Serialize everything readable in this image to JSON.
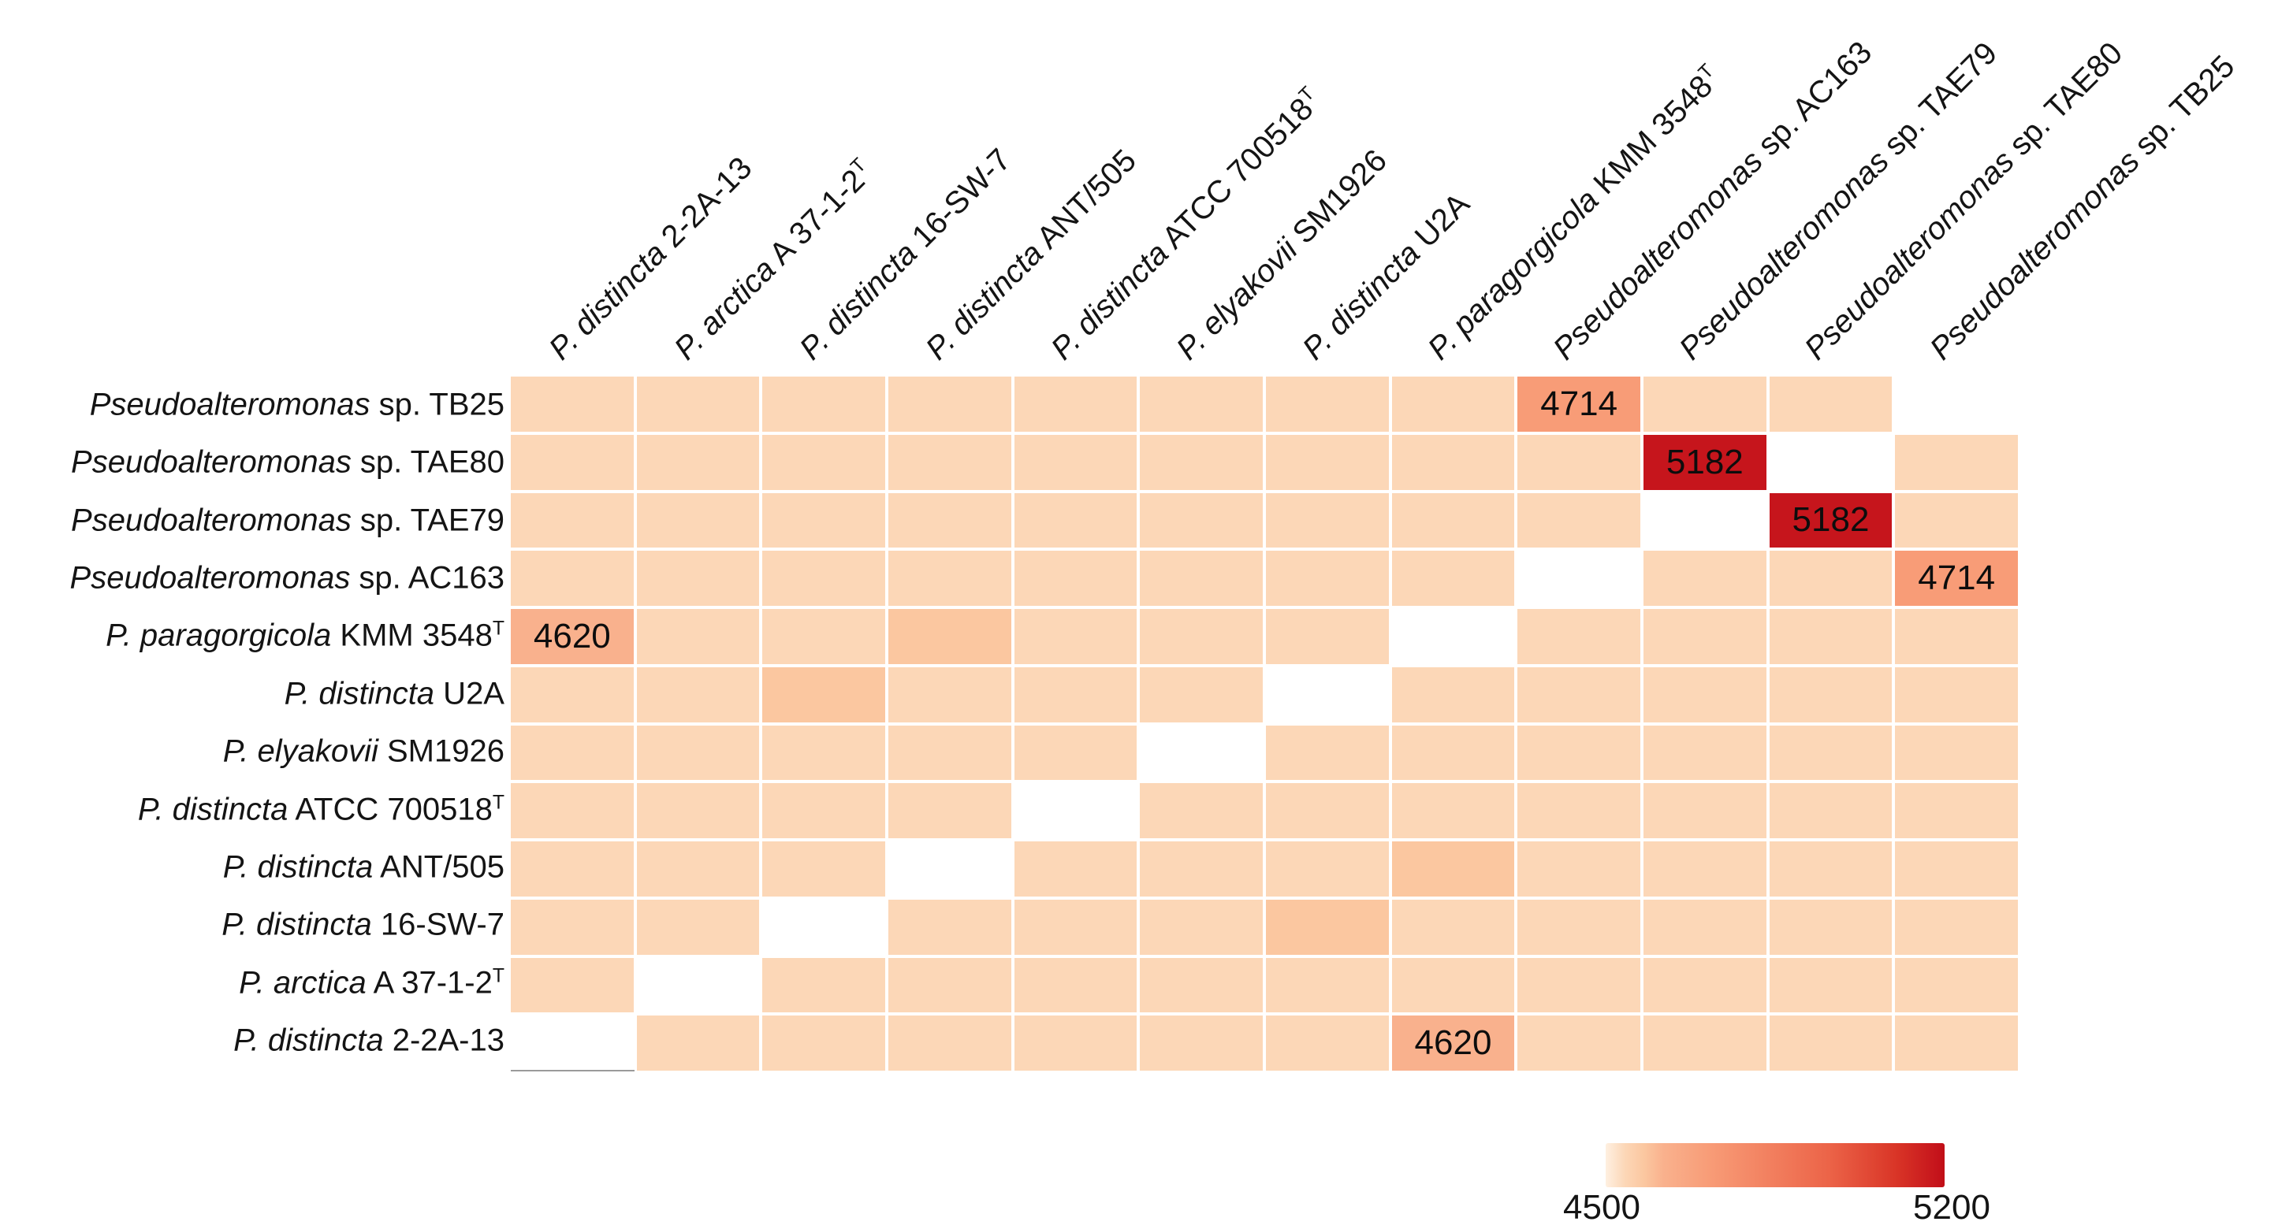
{
  "chart_data": {
    "type": "heatmap",
    "title": "",
    "xlabel": "",
    "ylabel": "",
    "rows": [
      "Pseudoalteromonas sp. TB25",
      "Pseudoalteromonas sp. TAE80",
      "Pseudoalteromonas sp. TAE79",
      "Pseudoalteromonas sp. AC163",
      "P. paragorgicola KMM 3548ᵀ",
      "P. distincta U2A",
      "P. elyakovii SM1926",
      "P. distincta ATCC 700518ᵀ",
      "P. distincta ANT/505",
      "P. distincta 16-SW-7",
      "P. arctica A 37-1-2ᵀ",
      "P. distincta 2-2A-13"
    ],
    "columns": [
      "P. distincta 2-2A-13",
      "P. arctica A 37-1-2ᵀ",
      "P. distincta 16-SW-7",
      "P. distincta ANT/505",
      "P. distincta ATCC 700518ᵀ",
      "P. elyakovii SM1926",
      "P. distincta U2A",
      "P. paragorgicola KMM 3548ᵀ",
      "Pseudoalteromonas sp. AC163",
      "Pseudoalteromonas sp. TAE79",
      "Pseudoalteromonas sp. TAE80",
      "Pseudoalteromonas sp. TB25"
    ],
    "values": [
      [
        4540,
        4540,
        4540,
        4540,
        4540,
        4540,
        4540,
        4540,
        4714,
        4540,
        4540,
        null
      ],
      [
        4540,
        4540,
        4540,
        4540,
        4540,
        4540,
        4540,
        4540,
        4540,
        5182,
        null,
        4540
      ],
      [
        4540,
        4540,
        4540,
        4540,
        4540,
        4540,
        4540,
        4540,
        4540,
        null,
        5182,
        4540
      ],
      [
        4540,
        4540,
        4540,
        4540,
        4540,
        4540,
        4540,
        4540,
        null,
        4540,
        4540,
        4714
      ],
      [
        4620,
        4540,
        4540,
        4580,
        4540,
        4540,
        4540,
        null,
        4540,
        4540,
        4540,
        4540
      ],
      [
        4540,
        4540,
        4580,
        4540,
        4540,
        4540,
        null,
        4540,
        4540,
        4540,
        4540,
        4540
      ],
      [
        4540,
        4540,
        4540,
        4540,
        4540,
        null,
        4540,
        4540,
        4540,
        4540,
        4540,
        4540
      ],
      [
        4540,
        4540,
        4540,
        4540,
        null,
        4540,
        4540,
        4540,
        4540,
        4540,
        4540,
        4540
      ],
      [
        4540,
        4540,
        4540,
        null,
        4540,
        4540,
        4540,
        4580,
        4540,
        4540,
        4540,
        4540
      ],
      [
        4540,
        4540,
        null,
        4540,
        4540,
        4540,
        4580,
        4540,
        4540,
        4540,
        4540,
        4540
      ],
      [
        4540,
        null,
        4540,
        4540,
        4540,
        4540,
        4540,
        4540,
        4540,
        4540,
        4540,
        4540
      ],
      [
        null,
        4540,
        4540,
        4540,
        4540,
        4540,
        4540,
        4620,
        4540,
        4540,
        4540,
        4540
      ]
    ],
    "annotated_cells": [
      {
        "row": 0,
        "col": 8,
        "label": "4714"
      },
      {
        "row": 1,
        "col": 9,
        "label": "5182"
      },
      {
        "row": 2,
        "col": 10,
        "label": "5182"
      },
      {
        "row": 3,
        "col": 11,
        "label": "4714"
      },
      {
        "row": 4,
        "col": 0,
        "label": "4620"
      },
      {
        "row": 11,
        "col": 7,
        "label": "4620"
      }
    ],
    "diagonal_note": "self-comparison cells rendered white",
    "colorbar": {
      "min": 4500,
      "max": 5200,
      "min_label": "4500",
      "max_label": "5200",
      "legend_position": "bottom-right"
    },
    "grid": "white gridlines between cells"
  },
  "labels": {
    "rows": [
      {
        "em": "Pseudoalteromonas",
        "rest": " sp. TB25",
        "sup": ""
      },
      {
        "em": "Pseudoalteromonas",
        "rest": " sp. TAE80",
        "sup": ""
      },
      {
        "em": "Pseudoalteromonas",
        "rest": " sp. TAE79",
        "sup": ""
      },
      {
        "em": "Pseudoalteromonas",
        "rest": " sp. AC163",
        "sup": ""
      },
      {
        "em": "P. paragorgicola",
        "rest": " KMM 3548",
        "sup": "T"
      },
      {
        "em": "P. distincta",
        "rest": " U2A",
        "sup": ""
      },
      {
        "em": "P. elyakovii",
        "rest": " SM1926",
        "sup": ""
      },
      {
        "em": "P. distincta",
        "rest": " ATCC 700518",
        "sup": "T"
      },
      {
        "em": "P. distincta",
        "rest": " ANT/505",
        "sup": ""
      },
      {
        "em": "P. distincta",
        "rest": " 16-SW-7",
        "sup": ""
      },
      {
        "em": "P. arctica",
        "rest": " A 37-1-2",
        "sup": "T"
      },
      {
        "em": "P. distincta",
        "rest": " 2-2A-13",
        "sup": ""
      }
    ],
    "columns": [
      {
        "em": "P. distincta",
        "rest": " 2-2A-13",
        "sup": ""
      },
      {
        "em": "P. arctica",
        "rest": " A 37-1-2",
        "sup": "T"
      },
      {
        "em": "P. distincta",
        "rest": " 16-SW-7",
        "sup": ""
      },
      {
        "em": "P. distincta",
        "rest": " ANT/505",
        "sup": ""
      },
      {
        "em": "P. distincta",
        "rest": " ATCC 700518",
        "sup": "T"
      },
      {
        "em": "P. elyakovii",
        "rest": " SM1926",
        "sup": ""
      },
      {
        "em": "P. distincta",
        "rest": " U2A",
        "sup": ""
      },
      {
        "em": "P. paragorgicola",
        "rest": " KMM 3548",
        "sup": "T"
      },
      {
        "em": "Pseudoalteromonas",
        "rest": " sp. AC163",
        "sup": ""
      },
      {
        "em": "Pseudoalteromonas",
        "rest": " sp. TAE79",
        "sup": ""
      },
      {
        "em": "Pseudoalteromonas",
        "rest": " sp. TAE80",
        "sup": ""
      },
      {
        "em": "Pseudoalteromonas",
        "rest": " sp. TB25",
        "sup": ""
      }
    ]
  },
  "style": {
    "null_color": "#FFFFFF",
    "annotation_text_color": "#0d0d0d",
    "color_scale_stops": [
      {
        "v": 4500,
        "c": "#FEF0E1"
      },
      {
        "v": 4540,
        "c": "#FCD7B7"
      },
      {
        "v": 4580,
        "c": "#FBC7A0"
      },
      {
        "v": 4620,
        "c": "#F9B18D"
      },
      {
        "v": 4714,
        "c": "#F89C77"
      },
      {
        "v": 4960,
        "c": "#EC6448"
      },
      {
        "v": 5100,
        "c": "#D93527"
      },
      {
        "v": 5182,
        "c": "#C6151C"
      },
      {
        "v": 5200,
        "c": "#C00F17"
      }
    ]
  }
}
